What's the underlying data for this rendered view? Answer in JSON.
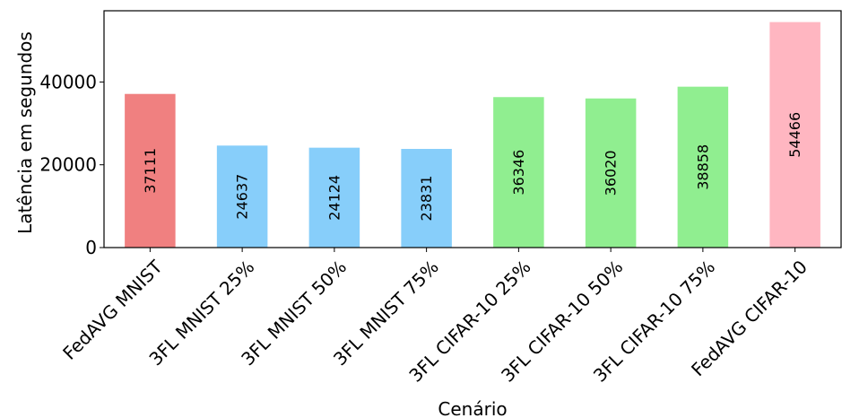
{
  "chart_data": {
    "type": "bar",
    "categories": [
      "FedAVG MNIST",
      "3FL MNIST 25%",
      "3FL MNIST 50%",
      "3FL MNIST 75%",
      "3FL CIFAR-10 25%",
      "3FL CIFAR-10 50%",
      "3FL CIFAR-10 75%",
      "FedAVG CIFAR-10"
    ],
    "values": [
      37111,
      24637,
      24124,
      23831,
      36346,
      36020,
      38858,
      54466
    ],
    "colors": [
      "#f08080",
      "#87cefa",
      "#87cefa",
      "#87cefa",
      "#90ee90",
      "#90ee90",
      "#90ee90",
      "#ffb6c1"
    ],
    "xlabel": "Cenário",
    "ylabel": "Latência em segundos",
    "ylim": [
      0,
      57200
    ],
    "yticks": [
      0,
      20000,
      40000
    ],
    "grid": false,
    "legend": "none"
  }
}
